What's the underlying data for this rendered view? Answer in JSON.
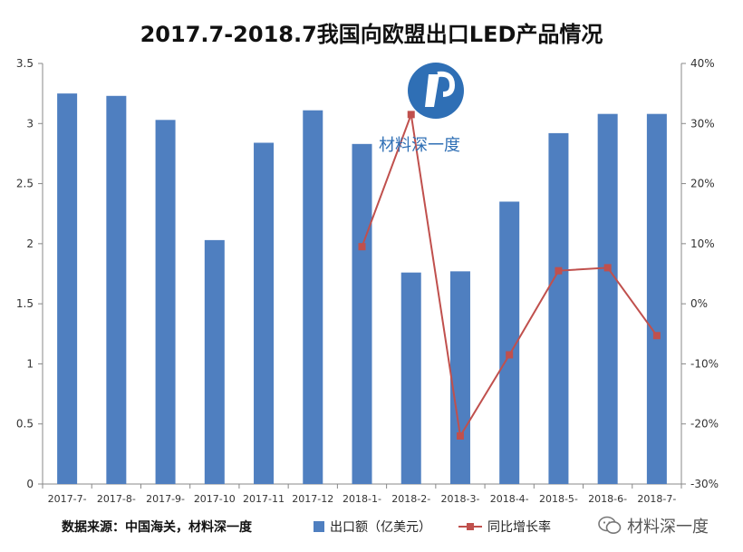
{
  "title": "2017.7-2018.7我国向欧盟出口LED产品情况",
  "chart_data": {
    "type": "bar+line",
    "title": "2017.7-2018.7我国向欧盟出口LED产品情况",
    "categories": [
      "2017-7-",
      "2017-8-",
      "2017-9-",
      "2017-10",
      "2017-11",
      "2017-12",
      "2018-1-",
      "2018-2-",
      "2018-3-",
      "2018-4-",
      "2018-5-",
      "2018-6-",
      "2018-7-"
    ],
    "series": [
      {
        "name": "出口额（亿美元）",
        "type": "bar",
        "axis": "left",
        "color": "#4F7FC0",
        "values": [
          3.25,
          3.23,
          3.03,
          2.03,
          2.84,
          3.11,
          2.83,
          1.76,
          1.77,
          2.35,
          2.92,
          3.08,
          3.08
        ]
      },
      {
        "name": "同比增长率",
        "type": "line",
        "axis": "right",
        "color": "#C0504D",
        "values": [
          null,
          null,
          null,
          null,
          null,
          null,
          9.5,
          31.5,
          -22,
          -8.5,
          5.5,
          6,
          -5.3
        ]
      }
    ],
    "y_left": {
      "min": 0,
      "max": 3.5,
      "ticks": [
        "0",
        "0.5",
        "1",
        "1.5",
        "2",
        "2.5",
        "3",
        "3.5"
      ]
    },
    "y_right": {
      "min": -30,
      "max": 40,
      "unit": "%",
      "ticks": [
        "-30%",
        "-20%",
        "-10%",
        "0%",
        "10%",
        "20%",
        "30%",
        "40%"
      ]
    },
    "grid": false,
    "legend_position": "bottom"
  },
  "footer": {
    "source": "数据来源：中国海关，材料深一度",
    "watermark": "材料深一度"
  },
  "watermark_text": "材料深一度"
}
